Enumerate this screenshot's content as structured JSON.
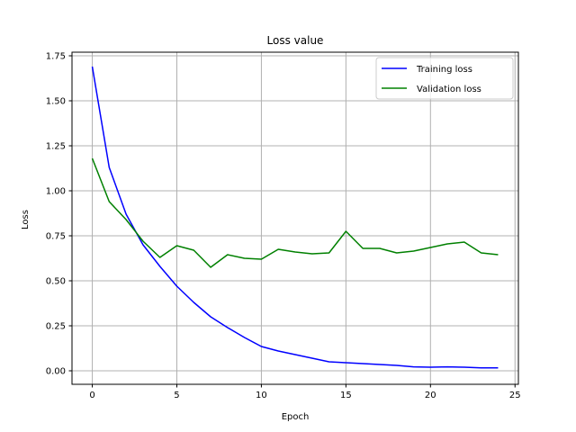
{
  "chart_data": {
    "type": "line",
    "title": "Loss value",
    "xlabel": "Epoch",
    "ylabel": "Loss",
    "xlim": [
      -1.2,
      25.2
    ],
    "ylim": [
      -0.075,
      1.77
    ],
    "xticks": [
      0,
      5,
      10,
      15,
      20,
      25
    ],
    "xtick_labels": [
      "0",
      "5",
      "10",
      "15",
      "20",
      "25"
    ],
    "yticks": [
      0.0,
      0.25,
      0.5,
      0.75,
      1.0,
      1.25,
      1.5,
      1.75
    ],
    "ytick_labels": [
      "0.00",
      "0.25",
      "0.50",
      "0.75",
      "1.00",
      "1.25",
      "1.50",
      "1.75"
    ],
    "grid": true,
    "legend_position": "top-right",
    "x": [
      0,
      1,
      2,
      3,
      4,
      5,
      6,
      7,
      8,
      9,
      10,
      11,
      12,
      13,
      14,
      15,
      16,
      17,
      18,
      19,
      20,
      21,
      22,
      23,
      24
    ],
    "series": [
      {
        "name": "Training loss",
        "color": "#0000ff",
        "values": [
          1.69,
          1.13,
          0.87,
          0.7,
          0.58,
          0.47,
          0.38,
          0.3,
          0.24,
          0.185,
          0.135,
          0.11,
          0.09,
          0.07,
          0.05,
          0.045,
          0.04,
          0.035,
          0.03,
          0.022,
          0.02,
          0.022,
          0.02,
          0.016,
          0.016
        ]
      },
      {
        "name": "Validation loss",
        "color": "#008000",
        "values": [
          1.18,
          0.94,
          0.84,
          0.72,
          0.63,
          0.695,
          0.67,
          0.575,
          0.645,
          0.625,
          0.62,
          0.675,
          0.66,
          0.65,
          0.655,
          0.775,
          0.68,
          0.68,
          0.655,
          0.665,
          0.685,
          0.705,
          0.715,
          0.655,
          0.645
        ]
      }
    ]
  }
}
